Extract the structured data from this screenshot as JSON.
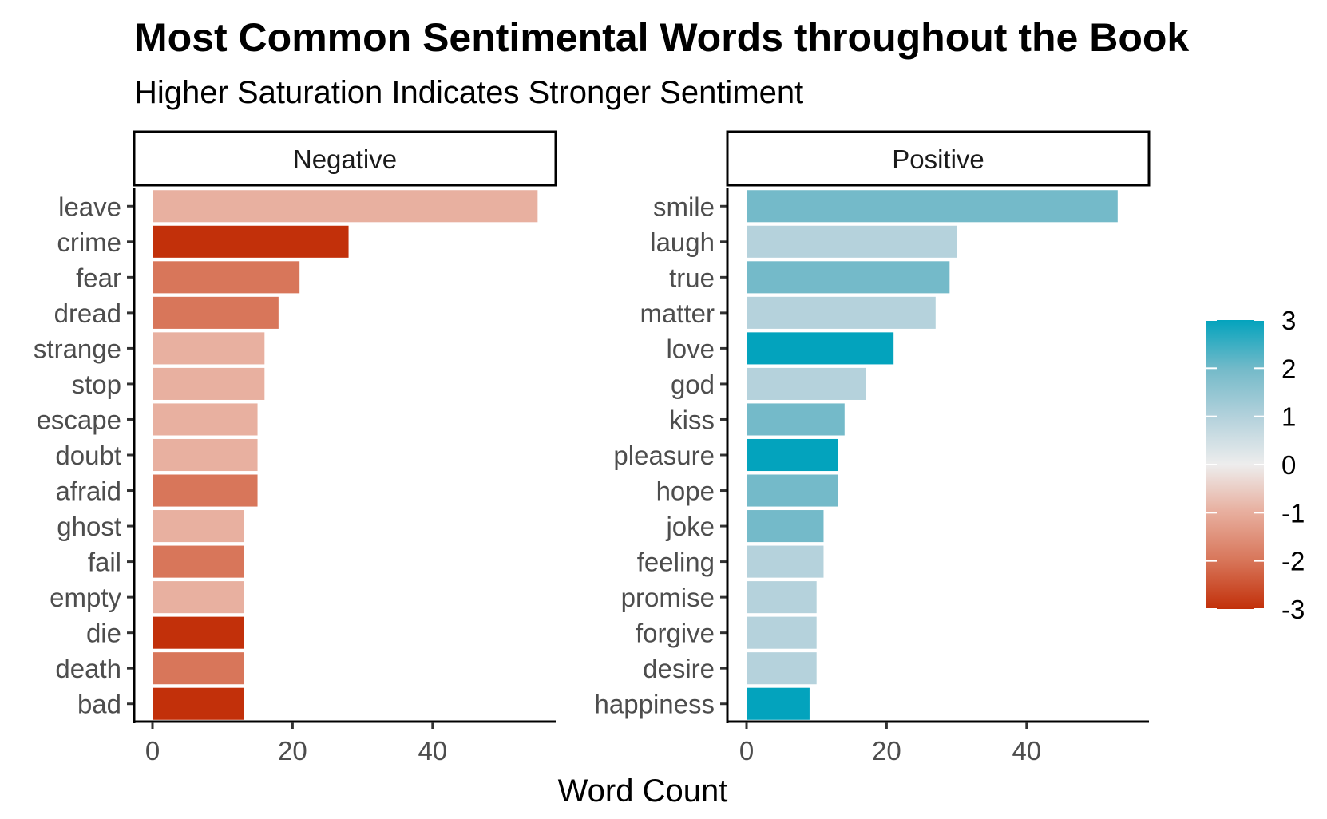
{
  "chart_data": {
    "type": "bar",
    "orientation": "horizontal",
    "title": "Most Common Sentimental Words throughout the Book",
    "subtitle": "Higher Saturation Indicates Stronger Sentiment",
    "xlabel": "Word Count",
    "ylabel": "",
    "xlim": [
      0,
      57
    ],
    "x_ticks": [
      0,
      20,
      40
    ],
    "x_tick_labels": [
      "0",
      "20",
      "40"
    ],
    "grid": false,
    "legend": {
      "position": "right",
      "type": "colorbar",
      "min": -3,
      "max": 3,
      "ticks": [
        3,
        2,
        1,
        0,
        -1,
        -2,
        -3
      ],
      "tick_labels": [
        "3",
        "2",
        "1",
        "0",
        "-1",
        "-2",
        "-3"
      ],
      "colors": {
        "negative": "#c2300a",
        "neutral": "#ededed",
        "positive": "#03a3bd"
      }
    },
    "panels": [
      {
        "name": "Negative",
        "categories": [
          "leave",
          "crime",
          "fear",
          "dread",
          "strange",
          "stop",
          "escape",
          "doubt",
          "afraid",
          "ghost",
          "fail",
          "empty",
          "die",
          "death",
          "bad"
        ],
        "values": [
          55,
          28,
          21,
          18,
          16,
          16,
          15,
          15,
          15,
          13,
          13,
          13,
          13,
          13,
          13
        ],
        "sentiment": [
          -1,
          -3,
          -2,
          -2,
          -1,
          -1,
          -1,
          -1,
          -2,
          -1,
          -2,
          -1,
          -3,
          -2,
          -3
        ]
      },
      {
        "name": "Positive",
        "categories": [
          "smile",
          "laugh",
          "true",
          "matter",
          "love",
          "god",
          "kiss",
          "pleasure",
          "hope",
          "joke",
          "feeling",
          "promise",
          "forgive",
          "desire",
          "happiness"
        ],
        "values": [
          53,
          30,
          29,
          27,
          21,
          17,
          14,
          13,
          13,
          11,
          11,
          10,
          10,
          10,
          9
        ],
        "sentiment": [
          2,
          1,
          2,
          1,
          3,
          1,
          2,
          3,
          2,
          2,
          1,
          1,
          1,
          1,
          3
        ]
      }
    ]
  }
}
